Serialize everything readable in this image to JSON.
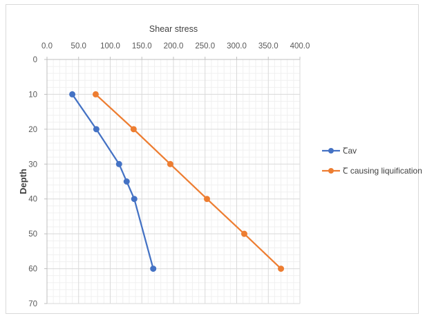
{
  "chart_data": {
    "type": "line",
    "xlabel": "Shear stress",
    "ylabel": "Depth",
    "xlim": [
      0,
      400
    ],
    "ylim": [
      0,
      70
    ],
    "x_axis_position": "top",
    "y_axis_reversed": true,
    "x_ticks": [
      "0.0",
      "50.0",
      "100.0",
      "150.0",
      "200.0",
      "250.0",
      "300.0",
      "350.0",
      "400.0"
    ],
    "y_ticks": [
      "0",
      "10",
      "20",
      "30",
      "40",
      "50",
      "60",
      "70"
    ],
    "grid": true,
    "legend_position": "right",
    "series": [
      {
        "name": "Ꞇav",
        "color": "#4472C4",
        "points": [
          {
            "x": 40,
            "y": 10
          },
          {
            "x": 78,
            "y": 20
          },
          {
            "x": 114,
            "y": 30
          },
          {
            "x": 126,
            "y": 35
          },
          {
            "x": 138,
            "y": 40
          },
          {
            "x": 168,
            "y": 60
          }
        ]
      },
      {
        "name": "Ꞇ causing liquification",
        "color": "#ED7D31",
        "points": [
          {
            "x": 77,
            "y": 10
          },
          {
            "x": 137,
            "y": 20
          },
          {
            "x": 195,
            "y": 30
          },
          {
            "x": 253,
            "y": 40
          },
          {
            "x": 312,
            "y": 50
          },
          {
            "x": 370,
            "y": 60
          }
        ]
      }
    ]
  }
}
